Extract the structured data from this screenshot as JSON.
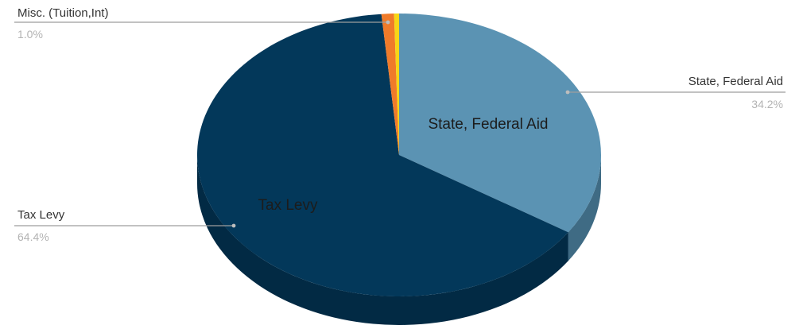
{
  "chart_data": {
    "type": "pie",
    "style": "3d",
    "title": "",
    "slices": [
      {
        "name": "State, Federal Aid",
        "value": 34.2,
        "value_label": "34.2%",
        "color": "#5b93b3",
        "side_color": "#3f6b84",
        "inside_label": "State, Federal Aid"
      },
      {
        "name": "Tax Levy",
        "value": 64.4,
        "value_label": "64.4%",
        "color": "#03385a",
        "side_color": "#022a44",
        "inside_label": "Tax Levy"
      },
      {
        "name": "Misc. (Tuition,Int)",
        "value": 1.0,
        "value_label": "1.0%",
        "color": "#f07b2a",
        "side_color": "#c05f1e",
        "inside_label": ""
      },
      {
        "name": "",
        "value": 0.4,
        "value_label": "",
        "color": "#f7d617",
        "side_color": "#c9ad10",
        "inside_label": ""
      }
    ],
    "legend": "callouts"
  }
}
